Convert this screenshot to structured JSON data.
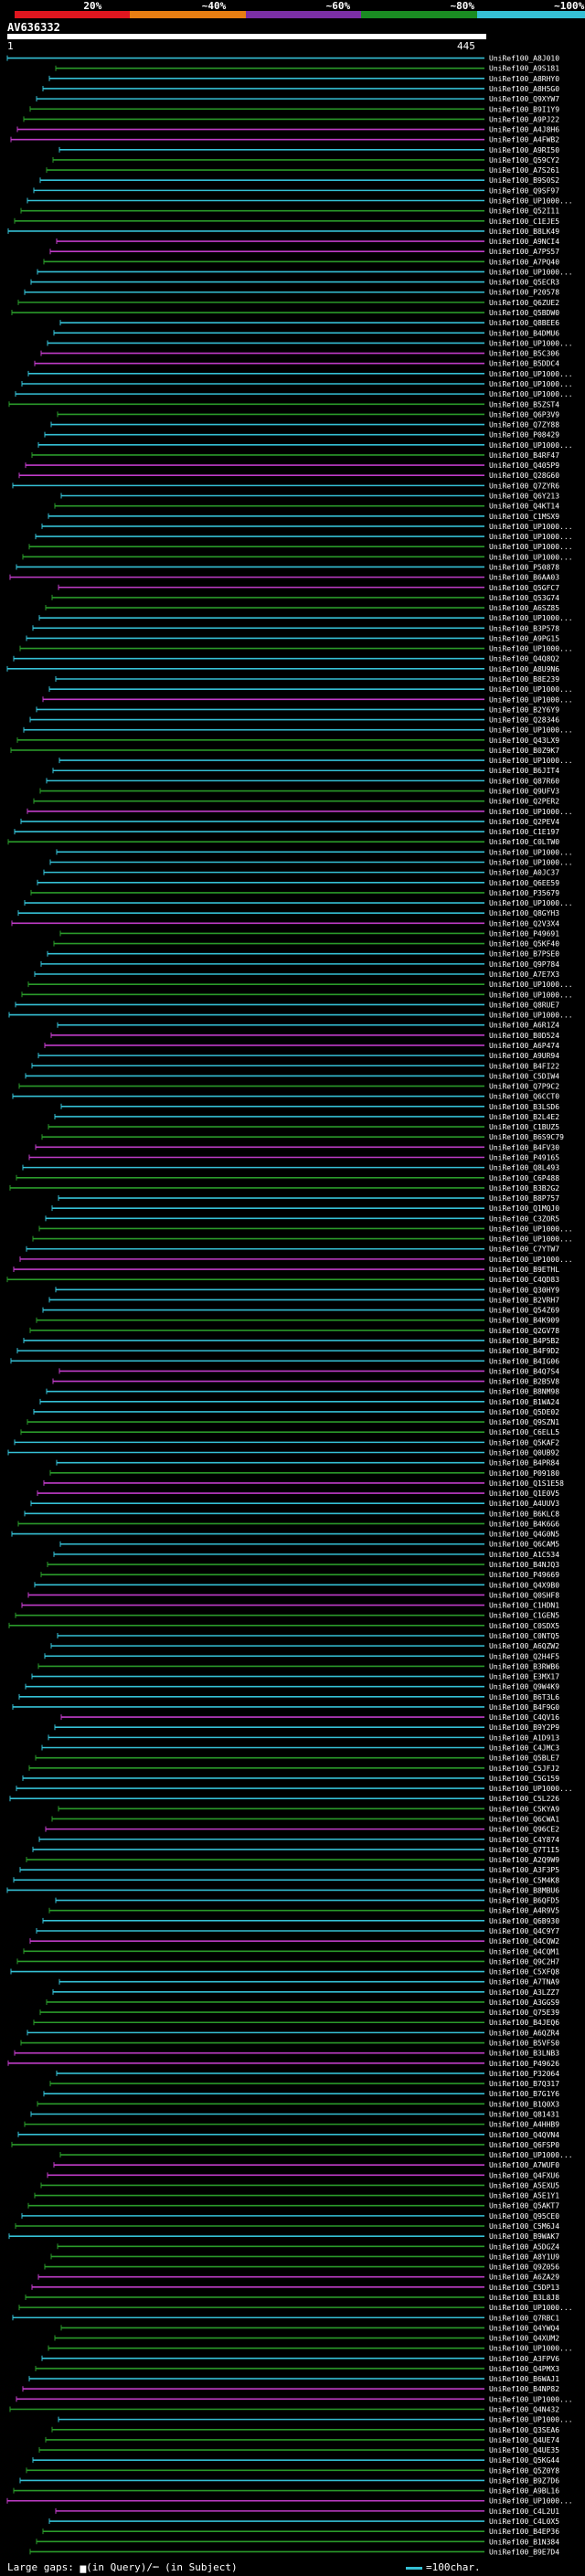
{
  "scale": {
    "labels": [
      "20%",
      "~40%",
      "~60%",
      "~80%",
      "~100%"
    ],
    "colors": [
      "#e0161f",
      "#e87e12",
      "#7b2fa6",
      "#1a8c22",
      "#35c0d5"
    ]
  },
  "query": {
    "id": "AV636332",
    "start": "1",
    "end": "445"
  },
  "colors": {
    "cyan": "#35c0d5",
    "green": "#2a9a2a",
    "magenta": "#c03cc8",
    "white": "#ffffff"
  },
  "hits": [
    "UniRef100_A8J010",
    "UniRef100_A9S181",
    "UniRef100_A8RHY0",
    "UniRef100_A8H5G0",
    "UniRef100_Q9XYW7",
    "UniRef100_B9I1Y9",
    "UniRef100_A9PJ22",
    "UniRef100_A4J8H6",
    "UniRef100_A4FWB2",
    "UniRef100_A9RI50",
    "UniRef100_Q59CY2",
    "UniRef100_A7S261",
    "UniRef100_B9S0S2",
    "UniRef100_Q9SF97",
    "UniRef100_UP1000...",
    "UniRef100_Q52I11",
    "UniRef100_C1EJE5",
    "UniRef100_B8LK49",
    "UniRef100_A9NCI4",
    "UniRef100_A7PS57",
    "UniRef100_A7PQ40",
    "UniRef100_UP1000...",
    "UniRef100_Q5ECR3",
    "UniRef100_P20578",
    "UniRef100_Q6ZUE2",
    "UniRef100_Q5BDW0",
    "UniRef100_Q8BEE6",
    "UniRef100_B4DMU6",
    "UniRef100_UP1000...",
    "UniRef100_B5C306",
    "UniRef100_B5DDC4",
    "UniRef100_UP1000...",
    "UniRef100_UP1000...",
    "UniRef100_UP1000...",
    "UniRef100_B5ZST4",
    "UniRef100_Q6P3V9",
    "UniRef100_Q7ZY88",
    "UniRef100_P08429",
    "UniRef100_UP1000...",
    "UniRef100_B4RF47",
    "UniRef100_Q405P9",
    "UniRef100_Q28G60",
    "UniRef100_Q7ZYR6",
    "UniRef100_Q6Y213",
    "UniRef100_Q4KT14",
    "UniRef100_C1MSX9",
    "UniRef100_UP1000...",
    "UniRef100_UP1000...",
    "UniRef100_UP1000...",
    "UniRef100_UP1000...",
    "UniRef100_P50878",
    "UniRef100_B6AA03",
    "UniRef100_Q5GFC7",
    "UniRef100_Q53G74",
    "UniRef100_A6SZ85",
    "UniRef100_UP1000...",
    "UniRef100_B3P578",
    "UniRef100_A9PG15",
    "UniRef100_UP1000...",
    "UniRef100_Q4Q8Q2",
    "UniRef100_A8U9N6",
    "UniRef100_B8E239",
    "UniRef100_UP1000...",
    "UniRef100_UP1000...",
    "UniRef100_B2Y6Y9",
    "UniRef100_Q28346",
    "UniRef100_UP1000...",
    "UniRef100_Q43LX9",
    "UniRef100_B0Z9K7",
    "UniRef100_UP1000...",
    "UniRef100_B6JIT4",
    "UniRef100_Q87R60",
    "UniRef100_Q9UFV3",
    "UniRef100_Q2PER2",
    "UniRef100_UP1000...",
    "UniRef100_Q2PEV4",
    "UniRef100_C1E197",
    "UniRef100_C0LTW0",
    "UniRef100_UP1000...",
    "UniRef100_UP1000...",
    "UniRef100_A0JC37",
    "UniRef100_Q6EE59",
    "UniRef100_P35679",
    "UniRef100_UP1000...",
    "UniRef100_Q8GYH3",
    "UniRef100_Q2V3X4",
    "UniRef100_P49691",
    "UniRef100_Q5KF40",
    "UniRef100_B7PSE0",
    "UniRef100_Q9P784",
    "UniRef100_A7E7X3",
    "UniRef100_UP1000...",
    "UniRef100_UP1000...",
    "UniRef100_Q8RUE7",
    "UniRef100_UP1000...",
    "UniRef100_A6R1Z4",
    "UniRef100_B0D524",
    "UniRef100_A6P474",
    "UniRef100_A9UR94",
    "UniRef100_B4FI22",
    "UniRef100_C5DIW4",
    "UniRef100_Q7P9C2",
    "UniRef100_Q6CCT0",
    "UniRef100_B3LSD6",
    "UniRef100_B2L4E2",
    "UniRef100_C1BUZ5",
    "UniRef100_B6S9C79",
    "UniRef100_B4FV30",
    "UniRef100_P49165",
    "UniRef100_Q8L493",
    "UniRef100_C6P488",
    "UniRef100_B3B2G2",
    "UniRef100_B8P757",
    "UniRef100_Q1MQJ0",
    "UniRef100_C3ZOR5",
    "UniRef100_UP1000...",
    "UniRef100_UP1000...",
    "UniRef100_C7YTW7",
    "UniRef100_UP1000...",
    "UniRef100_B9ETHL",
    "UniRef100_C4QD83",
    "UniRef100_Q30HY9",
    "UniRef100_B2VRH7",
    "UniRef100_Q54Z69",
    "UniRef100_B4K909",
    "UniRef100_Q2GV78",
    "UniRef100_B4P5B2",
    "UniRef100_B4F9D2",
    "UniRef100_B4IG06",
    "UniRef100_B4Q7S4",
    "UniRef100_B2B5V8",
    "UniRef100_B8NM98",
    "UniRef100_B1WA24",
    "UniRef100_Q5DE02",
    "UniRef100_Q9SZN1",
    "UniRef100_C6ELL5",
    "UniRef100_Q5KAF2",
    "UniRef100_Q0UB92",
    "UniRef100_B4PR84",
    "UniRef100_P09180",
    "UniRef100_Q1S1E58",
    "UniRef100_Q1E0V5",
    "UniRef100_A4UUV3",
    "UniRef100_B6KLC8",
    "UniRef100_B4K6G6",
    "UniRef100_Q4G0N5",
    "UniRef100_Q6CAM5",
    "UniRef100_A1C534",
    "UniRef100_B4NJQ3",
    "UniRef100_P49669",
    "UniRef100_Q4X9B0",
    "UniRef100_Q0SHF8",
    "UniRef100_C1HDN1",
    "UniRef100_C1GEN5",
    "UniRef100_C0SDX5",
    "UniRef100_C0NTQ5",
    "UniRef100_A6QZW2",
    "UniRef100_Q2H4F5",
    "UniRef100_B3RWB6",
    "UniRef100_E3MX17",
    "UniRef100_Q9W4K9",
    "UniRef100_B6T3L6",
    "UniRef100_B4F9G0",
    "UniRef100_C4QV16",
    "UniRef100_B9Y2P9",
    "UniRef100_A1D913",
    "UniRef100_C4JMC3",
    "UniRef100_Q5BLE7",
    "UniRef100_C5JFJ2",
    "UniRef100_C5G159",
    "UniRef100_UP1000...",
    "UniRef100_C5L226",
    "UniRef100_C5KYA9",
    "UniRef100_Q6CWA1",
    "UniRef100_Q96CE2",
    "UniRef100_C4Y874",
    "UniRef100_Q7T1I5",
    "UniRef100_A2Q9W9",
    "UniRef100_A3F3P5",
    "UniRef100_C5M4K8",
    "UniRef100_B8MBU6",
    "UniRef100_B6QFD5",
    "UniRef100_A4R9V5",
    "UniRef100_Q6B930",
    "UniRef100_Q4C9Y7",
    "UniRef100_Q4CQW2",
    "UniRef100_Q4CQM1",
    "UniRef100_Q9C2H7",
    "UniRef100_C5XFQ8",
    "UniRef100_A7TNA9",
    "UniRef100_A3LZZ7",
    "UniRef100_A3GGS9",
    "UniRef100_Q75E39",
    "UniRef100_B4JEQ6",
    "UniRef100_A6QZR4",
    "UniRef100_B5VFS0",
    "UniRef100_B3LNB3",
    "UniRef100_P49626",
    "UniRef100_P32064",
    "UniRef100_B7Q317",
    "UniRef100_B7G1Y6",
    "UniRef100_B1Q0X3",
    "UniRef100_Q81431",
    "UniRef100_A4HHB9",
    "UniRef100_Q4QVN4",
    "UniRef100_Q6FSP0",
    "UniRef100_UP1000...",
    "UniRef100_A7WUF0",
    "UniRef100_Q4FXU6",
    "UniRef100_A5EXU5",
    "UniRef100_A5E1Y1",
    "UniRef100_Q5AKT7",
    "UniRef100_Q95CE0",
    "UniRef100_C5M6J4",
    "UniRef100_B9WAK7",
    "UniRef100_A5DGZ4",
    "UniRef100_A8Y1U9",
    "UniRef100_Q9Z056",
    "UniRef100_A6ZA29",
    "UniRef100_C5DP13",
    "UniRef100_B3L8J8",
    "UniRef100_UP1000...",
    "UniRef100_Q7RBC1",
    "UniRef100_Q4YWQ4",
    "UniRef100_Q4XUM2",
    "UniRef100_UP1000...",
    "UniRef100_A3FPV6",
    "UniRef100_Q4PMX3",
    "UniRef100_B6WAJ1",
    "UniRef100_B4NP82",
    "UniRef100_UP1000...",
    "UniRef100_Q4N432",
    "UniRef100_UP1000...",
    "UniRef100_Q3SEA6",
    "UniRef100_Q4UE74",
    "UniRef100_Q4UE35",
    "UniRef100_Q5KG44",
    "UniRef100_Q5Z0Y8",
    "UniRef100_B9Z7D6",
    "UniRef100_A9BL16",
    "UniRef100_UP1000...",
    "UniRef100_C4L2U1",
    "UniRef100_C4L0X5",
    "UniRef100_B4EP36",
    "UniRef100_B1N384",
    "UniRef100_B9E7D4"
  ],
  "legend": {
    "left": "Large gaps: ▅(in Query)/┉ (in Subject)",
    "right": "=100char."
  }
}
